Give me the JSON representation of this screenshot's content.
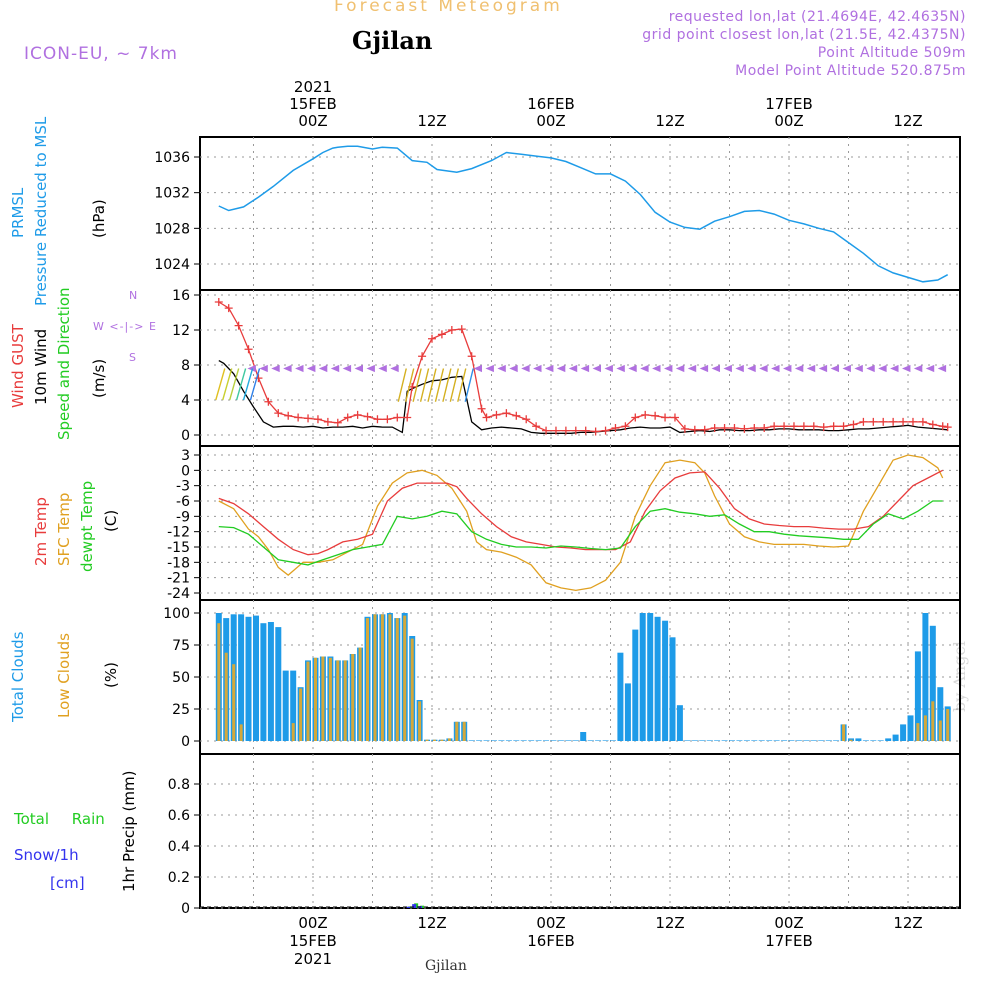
{
  "header": {
    "top_title": "Forecast Meteogram",
    "location": "Gjilan",
    "model": "ICON-EU, ~ 7km",
    "requested": "requested lon,lat (21.4694E, 42.4635N)",
    "grid_point": "grid point closest lon,lat (21.5E, 42.4375N)",
    "point_alt": "Point Altitude 509m",
    "model_alt": "Model Point Altitude 520.875m",
    "watermark": "by Angel",
    "bottom_location": "Gjilan"
  },
  "time_axis": {
    "hours_total": 64,
    "ticks": [
      {
        "h": 0,
        "label": "00Z",
        "date": "15FEB",
        "year": "2021"
      },
      {
        "h": 12,
        "label": "12Z",
        "date": "",
        "year": ""
      },
      {
        "h": 24,
        "label": "00Z",
        "date": "16FEB",
        "year": ""
      },
      {
        "h": 36,
        "label": "12Z",
        "date": "",
        "year": ""
      },
      {
        "h": 48,
        "label": "00Z",
        "date": "17FEB",
        "year": ""
      },
      {
        "h": 60,
        "label": "12Z",
        "date": "",
        "year": ""
      }
    ]
  },
  "colors": {
    "pressure": "#1e9be8",
    "gust": "#e83c3c",
    "wind": "#000000",
    "temp2m": "#e83c3c",
    "sfc": "#e0a020",
    "dewpt": "#22cc22",
    "total_clouds": "#1e9be8",
    "low_clouds": "#d4a83a",
    "purple": "#b070e0",
    "rain": "#22cc22",
    "snow": "#3333ee"
  },
  "panels": {
    "pressure": {
      "labels": [
        "PRMSL",
        "Pressure Reduced to MSL"
      ],
      "unit": "(hPa)",
      "ticks": [
        1024,
        1028,
        1032,
        1036
      ]
    },
    "wind": {
      "labels": [
        "Wind GUST",
        "10m Wind",
        "Speed and Direction"
      ],
      "unit": "(m/s)",
      "ticks": [
        0,
        4,
        8,
        12,
        16
      ],
      "compass": [
        "N",
        "W <-|-> E",
        "S"
      ]
    },
    "temp": {
      "labels": [
        "2m Temp",
        "SFC Temp",
        "dewpt Temp"
      ],
      "unit": "(C)",
      "ticks": [
        3,
        0,
        -3,
        -6,
        -9,
        -12,
        -15,
        -18,
        -21,
        -24
      ]
    },
    "clouds": {
      "labels": [
        "Total Clouds",
        "Low Clouds"
      ],
      "unit": "(%)",
      "ticks": [
        0,
        25,
        50,
        75,
        100
      ]
    },
    "precip": {
      "labels": [
        "Total Rain",
        "Snow/1h",
        "[cm]"
      ],
      "unit": "1hr Precip (mm)",
      "ticks": [
        "0",
        "0.2",
        "0.4",
        "0.6",
        "0.8"
      ]
    }
  },
  "chart_data": [
    {
      "type": "line",
      "name": "PRMSL",
      "ylabel": "(hPa)",
      "ylim": [
        1021.5,
        1038.5
      ],
      "x_hours": [
        -9.5,
        -8.5,
        -7,
        -5.5,
        -4,
        -2,
        0,
        1,
        2,
        2.5,
        3.5,
        4.5,
        6,
        7,
        8.5,
        10,
        11.5,
        12.5,
        14.5,
        16,
        18,
        19.5,
        21,
        22.5,
        24,
        25.5,
        27,
        28.5,
        30,
        31.5,
        33,
        34.5,
        36,
        37.5,
        39,
        40.5,
        42,
        43.5,
        45,
        46.5,
        48,
        49.5,
        51,
        52.5,
        54,
        55.5,
        57,
        58.5,
        60,
        61.5,
        63,
        64
      ],
      "values": [
        1030.5,
        1030.0,
        1030.4,
        1031.5,
        1032.7,
        1034.5,
        1035.8,
        1036.5,
        1037.0,
        1037.1,
        1037.2,
        1037.2,
        1036.9,
        1037.1,
        1037.0,
        1035.6,
        1035.4,
        1034.6,
        1034.3,
        1034.7,
        1035.6,
        1036.5,
        1036.3,
        1036.1,
        1035.9,
        1035.5,
        1034.8,
        1034.1,
        1034.1,
        1033.3,
        1031.8,
        1029.8,
        1028.7,
        1028.1,
        1027.9,
        1028.8,
        1029.3,
        1029.9,
        1030.0,
        1029.6,
        1028.9,
        1028.5,
        1028.0,
        1027.6,
        1026.4,
        1025.2,
        1023.8,
        1023.0,
        1022.5,
        1022.0,
        1022.2,
        1022.8
      ]
    },
    {
      "type": "line",
      "name": "Wind GUST",
      "ylabel": "(m/s)",
      "ylim": [
        -0.9,
        17.4
      ],
      "x_hours": [
        -9.5,
        -8.5,
        -7.5,
        -6.5,
        -5.5,
        -4.5,
        -3.5,
        -2.5,
        -1.5,
        -0.5,
        0.5,
        1.5,
        2.5,
        3.5,
        4.5,
        5.5,
        6.5,
        7.5,
        8.5,
        9.5,
        10,
        11,
        12,
        13,
        14,
        15,
        16,
        17,
        17.5,
        18.5,
        19.5,
        20.5,
        21.5,
        22.5,
        23.5,
        24.5,
        25.5,
        26.5,
        27.5,
        28.5,
        29.5,
        30.5,
        31.5,
        32.5,
        33.5,
        34.5,
        35.5,
        36.5,
        37.5,
        38.5,
        39.5,
        40.5,
        41.5,
        42.5,
        43.5,
        44.5,
        45.5,
        46.5,
        47.5,
        48.5,
        49.5,
        50.5,
        51.5,
        52.5,
        53.5,
        54.5,
        55.5,
        56.5,
        57.5,
        58.5,
        59.5,
        60.5,
        61.5,
        62.5,
        63.5,
        64
      ],
      "values": [
        15.2,
        14.5,
        12.5,
        9.8,
        6.5,
        3.8,
        2.5,
        2.2,
        2.0,
        1.9,
        1.8,
        1.5,
        1.4,
        2.0,
        2.3,
        2.1,
        1.8,
        1.8,
        2.0,
        2.0,
        5.5,
        9.0,
        11.0,
        11.5,
        12.0,
        12.1,
        9.0,
        3.0,
        2.0,
        2.3,
        2.5,
        2.2,
        1.8,
        1.0,
        0.5,
        0.5,
        0.5,
        0.5,
        0.5,
        0.4,
        0.5,
        0.8,
        1.0,
        2.0,
        2.3,
        2.2,
        2.0,
        2.0,
        0.7,
        0.6,
        0.6,
        0.8,
        0.8,
        0.8,
        0.7,
        0.8,
        0.8,
        1.0,
        1.0,
        1.0,
        1.0,
        1.0,
        0.9,
        1.0,
        1.0,
        1.2,
        1.5,
        1.5,
        1.5,
        1.5,
        1.5,
        1.5,
        1.5,
        1.2,
        1.0,
        0.9
      ]
    },
    {
      "type": "line",
      "name": "10m Wind",
      "ylabel": "(m/s)",
      "ylim": [
        -0.9,
        17.4
      ],
      "x_hours": [
        -9.5,
        -9,
        -8,
        -7,
        -6,
        -5,
        -4,
        -3,
        -2,
        -1,
        0,
        1,
        2,
        3,
        4,
        5,
        6,
        7,
        8,
        9,
        9.5,
        10,
        11,
        12,
        13,
        14,
        15,
        16,
        17,
        18,
        19,
        20,
        21,
        22,
        23,
        24,
        25,
        26,
        27,
        28,
        29,
        30,
        31,
        32,
        33,
        34,
        35,
        36,
        37,
        38,
        39,
        40,
        41,
        42,
        43,
        44,
        45,
        46,
        47,
        48,
        49,
        50,
        51,
        52,
        53,
        54,
        55,
        56,
        57,
        58,
        59,
        60,
        61,
        62,
        63,
        64
      ],
      "values": [
        8.5,
        8.2,
        7.0,
        5.0,
        3.2,
        1.5,
        0.9,
        1.0,
        1.0,
        0.9,
        1.0,
        0.8,
        0.9,
        0.9,
        1.0,
        0.8,
        1.0,
        0.9,
        0.9,
        0.3,
        5.0,
        5.3,
        5.8,
        6.2,
        6.3,
        6.6,
        6.7,
        1.5,
        0.6,
        0.8,
        0.9,
        0.8,
        0.7,
        0.3,
        0.2,
        0.2,
        0.2,
        0.2,
        0.3,
        0.3,
        0.4,
        0.5,
        0.6,
        0.8,
        0.9,
        0.8,
        0.8,
        0.9,
        0.3,
        0.4,
        0.5,
        0.4,
        0.6,
        0.6,
        0.5,
        0.5,
        0.6,
        0.6,
        0.7,
        0.7,
        0.6,
        0.6,
        0.6,
        0.5,
        0.5,
        0.6,
        0.7,
        0.7,
        0.8,
        0.9,
        1.0,
        1.1,
        0.9,
        0.8,
        0.7,
        0.6
      ]
    },
    {
      "type": "line",
      "name": "2m Temp",
      "ylabel": "(C)",
      "ylim": [
        -24.5,
        4.5
      ],
      "x_hours": [
        -9.5,
        -8,
        -6.5,
        -5,
        -3.5,
        -2,
        -0.5,
        0.5,
        1.5,
        3,
        4.5,
        6,
        7.5,
        9,
        10.5,
        12,
        13.5,
        14.5,
        15.5,
        17,
        18.5,
        20,
        21.5,
        23,
        24.5,
        26,
        27.5,
        29,
        30.5,
        32,
        33.5,
        35,
        36.5,
        38,
        39.5,
        41,
        42.5,
        44,
        45.5,
        47,
        48.5,
        50,
        51.5,
        53,
        54.5,
        56,
        57.5,
        59,
        60.5,
        62,
        63.5
      ],
      "values": [
        -5.5,
        -6.5,
        -8.5,
        -11.0,
        -13.5,
        -15.5,
        -16.5,
        -16.3,
        -15.5,
        -14.0,
        -13.5,
        -12.5,
        -6.0,
        -3.5,
        -2.5,
        -2.5,
        -2.5,
        -3.2,
        -5.5,
        -8.5,
        -11.0,
        -13.0,
        -14.0,
        -14.5,
        -15.0,
        -15.2,
        -15.5,
        -15.5,
        -15.5,
        -14.0,
        -8.0,
        -4.0,
        -1.5,
        -0.5,
        -0.3,
        -3.5,
        -7.5,
        -9.5,
        -10.5,
        -10.8,
        -11.0,
        -11.0,
        -11.3,
        -11.5,
        -11.5,
        -11.0,
        -9.0,
        -6.0,
        -3.0,
        -1.5,
        0.0
      ]
    },
    {
      "type": "line",
      "name": "SFC Temp",
      "ylabel": "(C)",
      "ylim": [
        -24.5,
        4.5
      ],
      "x_hours": [
        -9.5,
        -8,
        -6.5,
        -5.5,
        -4.5,
        -3.5,
        -2.5,
        -1,
        0.5,
        2,
        3.5,
        5,
        6.5,
        8,
        9.5,
        11,
        12.5,
        14,
        15.5,
        16.5,
        17.5,
        19,
        20.5,
        22,
        23.5,
        25,
        26.5,
        28,
        29.5,
        31,
        32.5,
        34,
        35.5,
        37,
        38.5,
        39.5,
        40.5,
        42,
        43.5,
        45,
        46.5,
        48,
        49.5,
        51,
        52.5,
        54,
        55.5,
        57,
        58.5,
        60,
        61.5,
        63,
        63.5
      ],
      "values": [
        -6.0,
        -7.5,
        -11.5,
        -13.0,
        -15.5,
        -19.0,
        -20.5,
        -18.0,
        -18.0,
        -17.5,
        -16.0,
        -14.5,
        -7.0,
        -2.5,
        -0.5,
        0.0,
        -1.0,
        -3.5,
        -8.0,
        -14.0,
        -15.5,
        -16.0,
        -17.0,
        -18.5,
        -22.0,
        -23.0,
        -23.5,
        -23.0,
        -21.5,
        -18.0,
        -9.0,
        -3.0,
        1.5,
        2.0,
        1.5,
        -0.5,
        -5.0,
        -10.5,
        -13.0,
        -14.0,
        -14.5,
        -14.5,
        -14.5,
        -14.8,
        -15.0,
        -14.8,
        -8.0,
        -3.0,
        2.0,
        3.0,
        2.5,
        0.5,
        -1.5
      ]
    },
    {
      "type": "line",
      "name": "dewpt Temp",
      "ylabel": "(C)",
      "ylim": [
        -24.5,
        4.5
      ],
      "x_hours": [
        -9.5,
        -8,
        -6.5,
        -5,
        -3.5,
        -2,
        -0.5,
        1,
        2.5,
        4,
        5.5,
        7,
        8.5,
        10,
        11.5,
        13,
        14.5,
        16,
        17.5,
        19,
        20.5,
        22,
        23.5,
        25,
        26.5,
        28,
        29.5,
        31,
        32.5,
        34,
        35.5,
        37,
        38.5,
        40,
        41.5,
        43,
        44.5,
        46,
        47.5,
        49,
        50.5,
        52,
        53.5,
        55,
        56.5,
        58,
        59.5,
        61,
        62.5,
        63.5
      ],
      "values": [
        -11.0,
        -11.2,
        -12.5,
        -15.0,
        -17.5,
        -18.0,
        -18.5,
        -17.5,
        -16.5,
        -15.5,
        -15.0,
        -14.5,
        -9.0,
        -9.5,
        -9.0,
        -8.0,
        -8.5,
        -12.0,
        -13.5,
        -14.5,
        -15.0,
        -15.0,
        -15.2,
        -14.8,
        -15.0,
        -15.3,
        -15.5,
        -15.2,
        -11.0,
        -8.0,
        -7.5,
        -8.2,
        -8.5,
        -9.0,
        -8.7,
        -10.5,
        -12.0,
        -12.0,
        -12.5,
        -12.8,
        -13.0,
        -13.2,
        -13.5,
        -13.5,
        -10.5,
        -8.5,
        -9.5,
        -8.0,
        -6.0,
        -6.0
      ]
    },
    {
      "type": "bar",
      "name": "Total Clouds",
      "ylabel": "(%)",
      "ylim": [
        -7,
        107
      ],
      "x_hours": [
        -9.5,
        -8.75,
        -8,
        -7.25,
        -6.5,
        -5.75,
        -5,
        -4.25,
        -3.5,
        -2.75,
        -2,
        -1.25,
        -0.5,
        0.25,
        1,
        1.75,
        2.5,
        3.25,
        4,
        4.75,
        5.5,
        6.25,
        7,
        7.75,
        8.5,
        9.25,
        10,
        10.75,
        11.5,
        12.25,
        13,
        13.75,
        14.5,
        15.25,
        16,
        16.75,
        17.5,
        18.25,
        19,
        19.75,
        20.5,
        21.25,
        22,
        22.75,
        23.5,
        24.25,
        25,
        25.75,
        26.5,
        27.25,
        28,
        28.75,
        29.5,
        30.25,
        31,
        31.75,
        32.5,
        33.25,
        34,
        34.75,
        35.5,
        36.25,
        37,
        37.75,
        38.5,
        39.25,
        40,
        40.75,
        41.5,
        42.25,
        43,
        43.75,
        44.5,
        45.25,
        46,
        46.75,
        47.5,
        48.25,
        49,
        49.75,
        50.5,
        51.25,
        52,
        52.75,
        53.5,
        54.25,
        55,
        55.75,
        56.5,
        57.25,
        58,
        58.75,
        59.5,
        60.25,
        61,
        61.75,
        62.5,
        63.25,
        64
      ],
      "values": [
        100,
        96,
        99,
        99,
        97,
        98,
        92,
        93,
        89,
        55,
        55,
        42,
        63,
        65,
        66,
        66,
        63,
        63,
        68,
        73,
        97,
        99,
        99,
        100,
        96,
        100,
        82,
        32,
        1,
        1,
        1,
        2,
        15,
        15,
        0,
        0,
        0,
        0,
        0,
        0,
        0,
        0,
        0,
        0,
        0,
        0,
        0,
        0,
        0,
        7,
        0,
        0,
        0,
        0,
        69,
        45,
        87,
        100,
        100,
        97,
        94,
        81,
        28,
        0,
        0,
        0,
        0,
        0,
        0,
        0,
        0,
        0,
        0,
        0,
        0,
        0,
        0,
        0,
        0,
        0,
        0,
        0,
        0,
        0,
        13,
        2,
        2,
        0,
        0,
        0,
        2,
        5,
        13,
        20,
        70,
        100,
        90,
        42,
        27
      ]
    },
    {
      "type": "bar",
      "name": "Low Clouds",
      "ylabel": "(%)",
      "ylim": [
        -7,
        107
      ],
      "x_hours": [
        -9.5,
        -8.75,
        -8,
        -7.25,
        -6.5,
        -5.75,
        -5,
        -4.25,
        -3.5,
        -2.75,
        -2,
        -1.25,
        -0.5,
        0.25,
        1,
        1.75,
        2.5,
        3.25,
        4,
        4.75,
        5.5,
        6.25,
        7,
        7.75,
        8.5,
        9.25,
        10,
        10.75,
        11.5,
        12.25,
        13,
        13.75,
        14.5,
        15.25,
        16,
        16.75,
        17.5,
        18.25,
        19,
        19.75,
        20.5,
        21.25,
        22,
        22.75,
        23.5,
        24.25,
        25,
        25.75,
        26.5,
        27.25,
        28,
        28.75,
        29.5,
        30.25,
        31,
        31.75,
        32.5,
        33.25,
        34,
        34.75,
        35.5,
        36.25,
        37,
        37.75,
        38.5,
        39.25,
        40,
        40.75,
        41.5,
        42.25,
        43,
        43.75,
        44.5,
        45.25,
        46,
        46.75,
        47.5,
        48.25,
        49,
        49.75,
        50.5,
        51.25,
        52,
        52.75,
        53.5,
        54.25,
        55,
        55.75,
        56.5,
        57.25,
        58,
        58.75,
        59.5,
        60.25,
        61,
        61.75,
        62.5,
        63.25,
        64
      ],
      "values": [
        92,
        69,
        60,
        13,
        0,
        0,
        0,
        0,
        0,
        0,
        14,
        41,
        62,
        65,
        66,
        65,
        63,
        63,
        68,
        73,
        96,
        99,
        99,
        99,
        96,
        98,
        80,
        31,
        1,
        1,
        1,
        2,
        15,
        15,
        0,
        0,
        0,
        0,
        0,
        0,
        0,
        0,
        0,
        0,
        0,
        0,
        0,
        0,
        0,
        0,
        0,
        0,
        0,
        0,
        0,
        0,
        0,
        0,
        0,
        0,
        0,
        0,
        0,
        0,
        0,
        0,
        0,
        0,
        0,
        0,
        0,
        0,
        0,
        0,
        0,
        0,
        0,
        0,
        0,
        0,
        0,
        0,
        0,
        0,
        13,
        1,
        0,
        0,
        0,
        0,
        0,
        0,
        0,
        0,
        14,
        20,
        31,
        16,
        25
      ]
    },
    {
      "type": "bar",
      "name": "Total Rain",
      "ylabel": "1hr Precip (mm)",
      "ylim": [
        -0.01,
        0.98
      ],
      "x_hours": [
        9.8,
        10.4,
        11.0
      ],
      "values": [
        0.01,
        0.03,
        0.015
      ]
    },
    {
      "type": "bar",
      "name": "Snow/1h",
      "ylabel": "1hr Precip (mm)",
      "ylim": [
        -0.01,
        0.98
      ],
      "x_hours": [
        9.6,
        10.2,
        10.8
      ],
      "values": [
        0.008,
        0.025,
        0.012
      ]
    }
  ]
}
